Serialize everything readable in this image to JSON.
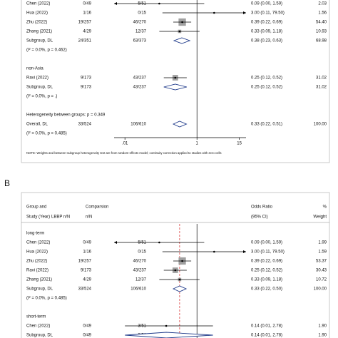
{
  "chart_data": [
    {
      "type": "forest",
      "xscale": "log",
      "xlim": [
        0.005,
        23
      ],
      "xticks": [
        {
          "value": 0.01,
          "label": ".01"
        },
        1,
        15
      ],
      "null_line": 1,
      "note": "NOTE: Weights and between-subgroup heterogeneity test are from random-effects model; continuity correction applied to studies with zero cells",
      "groups": [
        {
          "rows": [
            {
              "study": "Chen (2022)",
              "lbbp": "0/49",
              "comparison": "5/51",
              "or": 0.09,
              "lo": 0,
              "hi": 1.59,
              "ci_label": "0.09 (0.00, 1.59)",
              "weight": 2.03,
              "weight_label": "2.03",
              "marker": "square"
            },
            {
              "study": "Hua (2022)",
              "lbbp": "1/16",
              "comparison": "0/15",
              "or": 3,
              "lo": 0.11,
              "hi": 79.5,
              "ci_label": "3.00 (0.11, 79.50)",
              "weight": 1.56,
              "weight_label": "1.56",
              "marker": "square"
            },
            {
              "study": "Zhu (2022)",
              "lbbp": "19/257",
              "comparison": "46/270",
              "or": 0.39,
              "lo": 0.22,
              "hi": 0.69,
              "ci_label": "0.39 (0.22, 0.69)",
              "weight": 54.4,
              "weight_label": "54.40",
              "marker": "square"
            },
            {
              "study": "Zhang (2021)",
              "lbbp": "4/29",
              "comparison": "12/37",
              "or": 0.33,
              "lo": 0.09,
              "hi": 1.18,
              "ci_label": "0.33 (0.09, 1.18)",
              "weight": 10.93,
              "weight_label": "10.93",
              "marker": "square"
            },
            {
              "study": "Subgroup, DL",
              "lbbp": "24/351",
              "comparison": "63/373",
              "or": 0.38,
              "lo": 0.23,
              "hi": 0.63,
              "ci_label": "0.38 (0.23, 0.63)",
              "weight": 68.98,
              "weight_label": "68.98",
              "marker": "diamond"
            },
            {
              "text": "(I² = 0.0%, p = 0.462)"
            }
          ]
        },
        {
          "name": "non-Asia",
          "rows": [
            {
              "study": "Ravi (2022)",
              "lbbp": "9/173",
              "comparison": "43/237",
              "or": 0.25,
              "lo": 0.12,
              "hi": 0.52,
              "ci_label": "0.25 (0.12, 0.52)",
              "weight": 31.02,
              "weight_label": "31.02",
              "marker": "square"
            },
            {
              "study": "Subgroup, DL",
              "lbbp": "9/173",
              "comparison": "43/237",
              "or": 0.25,
              "lo": 0.12,
              "hi": 0.52,
              "ci_label": "0.25 (0.12, 0.52)",
              "weight": 31.02,
              "weight_label": "31.02",
              "marker": "diamond"
            },
            {
              "text": "(I² = 0.0%, p = .)"
            }
          ]
        },
        {
          "rows": [
            {
              "text": "Heterogeneity between groups: p = 0.349"
            },
            {
              "study": "Overall, DL",
              "lbbp": "33/524",
              "comparison": "106/610",
              "or": 0.33,
              "lo": 0.22,
              "hi": 0.51,
              "ci_label": "0.33 (0.22, 0.51)",
              "weight": 100,
              "weight_label": "100.00",
              "marker": "diamond"
            },
            {
              "text": "(I² = 0.0%, p = 0.485)"
            }
          ]
        }
      ]
    },
    {
      "type": "forest",
      "xscale": "log",
      "xlim": [
        0.005,
        23
      ],
      "null_line": 1,
      "overall_line": 0.33,
      "overall_line_color": "#d62020",
      "panel_label": "B",
      "headers": {
        "study": [
          "Group and",
          "Study (Year)"
        ],
        "lbbp": "LBBP n/N",
        "comparison": [
          "Comparsion",
          "n/N"
        ],
        "ci": [
          "Odds Ratio",
          "(95% CI)"
        ],
        "weight": [
          "%",
          "Weight"
        ]
      },
      "groups": [
        {
          "name": "long-term",
          "rows": [
            {
              "study": "Chen (2022)",
              "lbbp": "0/49",
              "comparison": "5/51",
              "or": 0.09,
              "lo": 0,
              "hi": 1.59,
              "ci_label": "0.09 (0.00, 1.59)",
              "weight": 1.99,
              "weight_label": "1.99",
              "marker": "square"
            },
            {
              "study": "Hua (2022)",
              "lbbp": "1/16",
              "comparison": "0/15",
              "or": 3,
              "lo": 0.11,
              "hi": 79.5,
              "ci_label": "3.00 (0.11, 79.50)",
              "weight": 1.59,
              "weight_label": "1.59",
              "marker": "square"
            },
            {
              "study": "Zhu (2022)",
              "lbbp": "19/257",
              "comparison": "46/270",
              "or": 0.39,
              "lo": 0.22,
              "hi": 0.69,
              "ci_label": "0.39 (0.22, 0.69)",
              "weight": 53.37,
              "weight_label": "53.37",
              "marker": "square"
            },
            {
              "study": "Ravi (2022)",
              "lbbp": "9/173",
              "comparison": "43/237",
              "or": 0.25,
              "lo": 0.12,
              "hi": 0.52,
              "ci_label": "0.25 (0.12, 0.52)",
              "weight": 30.43,
              "weight_label": "30.43",
              "marker": "square"
            },
            {
              "study": "Zhang (2021)",
              "lbbp": "4/29",
              "comparison": "12/37",
              "or": 0.33,
              "lo": 0.09,
              "hi": 1.18,
              "ci_label": "0.33 (0.09, 1.18)",
              "weight": 10.72,
              "weight_label": "10.72",
              "marker": "square"
            },
            {
              "study": "Subgroup, DL",
              "lbbp": "33/524",
              "comparison": "106/610",
              "or": 0.33,
              "lo": 0.22,
              "hi": 0.5,
              "ci_label": "0.33 (0.22, 0.50)",
              "weight": 100,
              "weight_label": "100.00",
              "marker": "diamond"
            },
            {
              "text": "(I² = 0.0%, p = 0.485)"
            }
          ]
        },
        {
          "name": "short-term",
          "rows": [
            {
              "study": "Chen (2022)",
              "lbbp": "0/49",
              "comparison": "3/51",
              "or": 0.14,
              "lo": 0.01,
              "hi": 2.78,
              "ci_label": "0.14 (0.01, 2.78)",
              "weight": 1.9,
              "weight_label": "1.90",
              "marker": "square"
            },
            {
              "study": "Subgroup, DL",
              "lbbp": "0/49",
              "comparison": "3/51",
              "or": 0.14,
              "lo": 0.01,
              "hi": 2.78,
              "ci_label": "0.14 (0.01, 2.78)",
              "weight": 1.9,
              "weight_label": "1.90",
              "marker": "diamond"
            }
          ]
        }
      ]
    }
  ]
}
